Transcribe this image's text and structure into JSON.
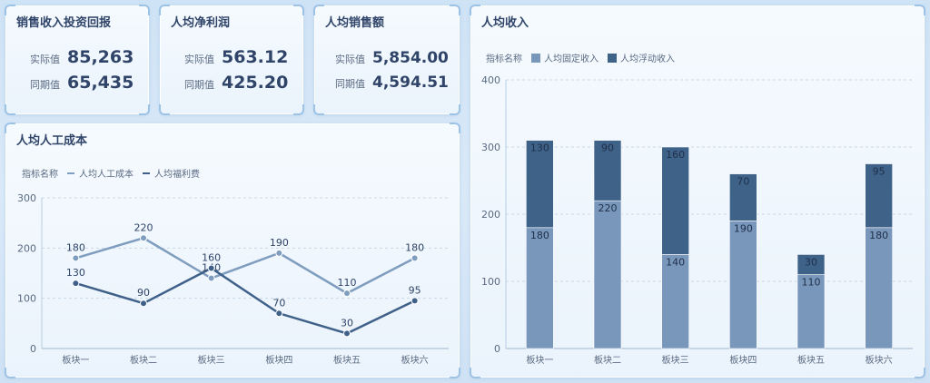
{
  "kpis": [
    {
      "title": "销售收入投资回报",
      "actual_label": "实际值",
      "actual": "85,263",
      "prev_label": "同期值",
      "prev": "65,435"
    },
    {
      "title": "人均净利润",
      "actual_label": "实际值",
      "actual": "563.12",
      "prev_label": "同期值",
      "prev": "425.20"
    },
    {
      "title": "人均销售额",
      "actual_label": "实际值",
      "actual": "5,854.00",
      "prev_label": "同期值",
      "prev": "4,594.51"
    }
  ],
  "line_panel": {
    "title": "人均人工成本",
    "legend_label": "指标名称"
  },
  "bar_panel": {
    "title": "人均收入",
    "legend_label": "指标名称"
  },
  "chart_data": [
    {
      "type": "line",
      "title": "人均人工成本",
      "categories": [
        "板块一",
        "板块二",
        "板块三",
        "板块四",
        "板块五",
        "板块六"
      ],
      "series": [
        {
          "name": "人均人工成本",
          "values": [
            180,
            220,
            140,
            190,
            110,
            180
          ],
          "color": "#7f9dbe"
        },
        {
          "name": "人均福利费",
          "values": [
            130,
            90,
            160,
            70,
            30,
            95
          ],
          "color": "#3f6189"
        }
      ],
      "ylim": [
        0,
        300
      ],
      "yticks": [
        0,
        100,
        200,
        300
      ],
      "grid": true,
      "legend": "top-left"
    },
    {
      "type": "bar",
      "stacked": true,
      "title": "人均收入",
      "categories": [
        "板块一",
        "板块二",
        "板块三",
        "板块四",
        "板块五",
        "板块六"
      ],
      "series": [
        {
          "name": "人均固定收入",
          "values": [
            180,
            220,
            140,
            190,
            110,
            180
          ],
          "color": "#7897bb"
        },
        {
          "name": "人均浮动收入",
          "values": [
            130,
            90,
            160,
            70,
            30,
            95
          ],
          "color": "#3f6288"
        }
      ],
      "ylim": [
        0,
        400
      ],
      "yticks": [
        0,
        100,
        200,
        300,
        400
      ],
      "grid": true,
      "legend": "top-left"
    }
  ]
}
